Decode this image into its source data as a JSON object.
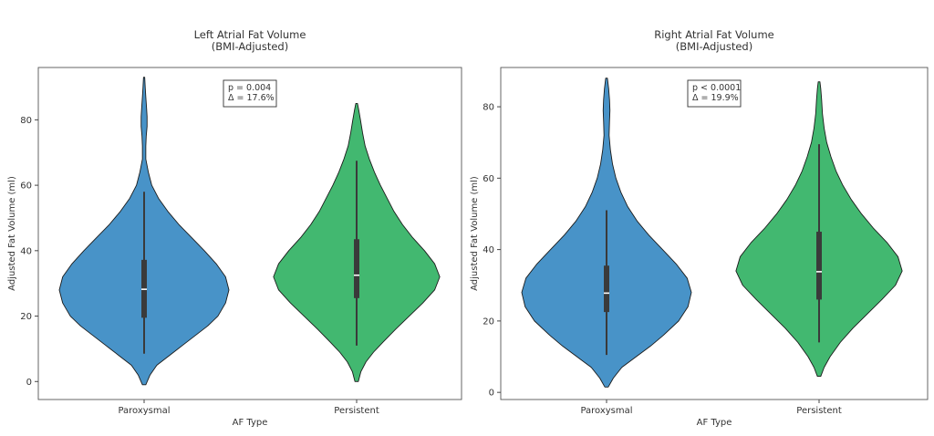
{
  "chart_data": [
    {
      "type": "violin",
      "title": "Left Atrial Fat Volume\n(BMI-Adjusted)",
      "xlabel": "AF Type",
      "ylabel": "Adjusted Fat Volume (ml)",
      "ylim": [
        -5.5,
        96
      ],
      "yticks": [
        0,
        20,
        40,
        60,
        80
      ],
      "annotation": [
        "p = 0.004",
        "Δ = 17.6%"
      ],
      "grid": false,
      "categories": [
        "Paroxysmal",
        "Persistent"
      ],
      "series": [
        {
          "category": "Paroxysmal",
          "color": "#4893c8",
          "min": 8.5,
          "q1": 19.5,
          "median": 28.2,
          "q3": 37.2,
          "max": 58,
          "density": [
            [
              -1,
              0.02
            ],
            [
              2,
              0.07
            ],
            [
              5,
              0.15
            ],
            [
              8,
              0.3
            ],
            [
              11,
              0.45
            ],
            [
              14,
              0.6
            ],
            [
              17,
              0.75
            ],
            [
              20,
              0.87
            ],
            [
              24,
              0.96
            ],
            [
              28,
              1.0
            ],
            [
              32,
              0.96
            ],
            [
              36,
              0.85
            ],
            [
              40,
              0.71
            ],
            [
              44,
              0.56
            ],
            [
              48,
              0.41
            ],
            [
              52,
              0.28
            ],
            [
              56,
              0.17
            ],
            [
              60,
              0.09
            ],
            [
              64,
              0.05
            ],
            [
              68,
              0.02
            ],
            [
              72,
              0.02
            ],
            [
              75,
              0.025
            ],
            [
              78,
              0.035
            ],
            [
              81,
              0.035
            ],
            [
              84,
              0.028
            ],
            [
              87,
              0.02
            ],
            [
              90,
              0.013
            ],
            [
              93,
              0.007
            ]
          ]
        },
        {
          "category": "Persistent",
          "color": "#42b870",
          "min": 11,
          "q1": 25.5,
          "median": 32.5,
          "q3": 43.5,
          "max": 67.5,
          "density": [
            [
              0,
              0.02
            ],
            [
              3,
              0.05
            ],
            [
              6,
              0.11
            ],
            [
              9,
              0.2
            ],
            [
              12,
              0.31
            ],
            [
              16,
              0.46
            ],
            [
              20,
              0.62
            ],
            [
              24,
              0.78
            ],
            [
              28,
              0.92
            ],
            [
              32,
              0.98
            ],
            [
              36,
              0.92
            ],
            [
              40,
              0.8
            ],
            [
              44,
              0.66
            ],
            [
              48,
              0.54
            ],
            [
              52,
              0.44
            ],
            [
              56,
              0.36
            ],
            [
              60,
              0.28
            ],
            [
              64,
              0.21
            ],
            [
              68,
              0.15
            ],
            [
              72,
              0.1
            ],
            [
              76,
              0.07
            ],
            [
              80,
              0.045
            ],
            [
              83,
              0.025
            ],
            [
              85,
              0.01
            ]
          ]
        }
      ]
    },
    {
      "type": "violin",
      "title": "Right Atrial Fat Volume\n(BMI-Adjusted)",
      "xlabel": "AF Type",
      "ylabel": "Adjusted Fat Volume (ml)",
      "ylim": [
        -2,
        91
      ],
      "yticks": [
        0,
        20,
        40,
        60,
        80
      ],
      "annotation": [
        "p < 0.0001",
        "Δ = 19.9%"
      ],
      "grid": false,
      "categories": [
        "Paroxysmal",
        "Persistent"
      ],
      "series": [
        {
          "category": "Paroxysmal",
          "color": "#4893c8",
          "min": 10.5,
          "q1": 22.5,
          "median": 27.8,
          "q3": 35.5,
          "max": 51,
          "density": [
            [
              1.5,
              0.02
            ],
            [
              4,
              0.08
            ],
            [
              7,
              0.18
            ],
            [
              10,
              0.35
            ],
            [
              13,
              0.52
            ],
            [
              16,
              0.67
            ],
            [
              20,
              0.85
            ],
            [
              24,
              0.96
            ],
            [
              28,
              1.0
            ],
            [
              32,
              0.95
            ],
            [
              36,
              0.82
            ],
            [
              40,
              0.66
            ],
            [
              44,
              0.5
            ],
            [
              48,
              0.36
            ],
            [
              52,
              0.25
            ],
            [
              56,
              0.17
            ],
            [
              60,
              0.11
            ],
            [
              64,
              0.07
            ],
            [
              68,
              0.045
            ],
            [
              72,
              0.03
            ],
            [
              76,
              0.035
            ],
            [
              79,
              0.04
            ],
            [
              82,
              0.035
            ],
            [
              85,
              0.025
            ],
            [
              88,
              0.01
            ]
          ]
        },
        {
          "category": "Persistent",
          "color": "#42b870",
          "min": 14,
          "q1": 26,
          "median": 33.8,
          "q3": 45,
          "max": 69.5,
          "density": [
            [
              4.5,
              0.02
            ],
            [
              7,
              0.06
            ],
            [
              10,
              0.13
            ],
            [
              14,
              0.25
            ],
            [
              18,
              0.4
            ],
            [
              22,
              0.57
            ],
            [
              26,
              0.74
            ],
            [
              30,
              0.9
            ],
            [
              34,
              0.98
            ],
            [
              38,
              0.93
            ],
            [
              42,
              0.8
            ],
            [
              46,
              0.64
            ],
            [
              50,
              0.5
            ],
            [
              54,
              0.38
            ],
            [
              58,
              0.28
            ],
            [
              62,
              0.2
            ],
            [
              66,
              0.14
            ],
            [
              70,
              0.09
            ],
            [
              74,
              0.06
            ],
            [
              78,
              0.04
            ],
            [
              82,
              0.03
            ],
            [
              85,
              0.02
            ],
            [
              87,
              0.01
            ]
          ]
        }
      ]
    }
  ]
}
